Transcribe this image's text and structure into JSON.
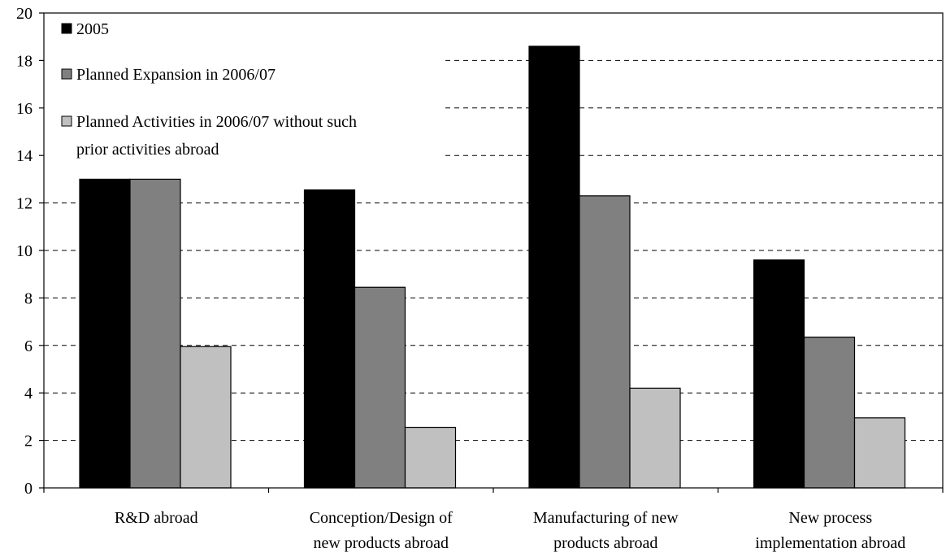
{
  "chart_data": {
    "type": "bar",
    "title": "",
    "xlabel": "",
    "ylabel": "",
    "ylim": [
      0,
      20
    ],
    "yticks": [
      0,
      2,
      4,
      6,
      8,
      10,
      12,
      14,
      16,
      18,
      20
    ],
    "grid": "horizontal dashed",
    "legend_position": "top-left",
    "categories": [
      [
        "R&D abroad"
      ],
      [
        "Conception/Design of",
        "new products abroad"
      ],
      [
        "Manufacturing of new",
        "products abroad"
      ],
      [
        "New process",
        "implementation abroad"
      ]
    ],
    "series": [
      {
        "name": "2005",
        "color": "#000000",
        "values": [
          13.0,
          12.55,
          18.6,
          9.6
        ]
      },
      {
        "name": "Planned Expansion in 2006/07",
        "color": "#808080",
        "values": [
          13.0,
          8.45,
          12.3,
          6.35
        ]
      },
      {
        "name": [
          "Planned Activities in 2006/07 without such",
          "prior activities abroad"
        ],
        "color": "#c0c0c0",
        "values": [
          5.95,
          2.55,
          4.2,
          2.95
        ]
      }
    ]
  }
}
